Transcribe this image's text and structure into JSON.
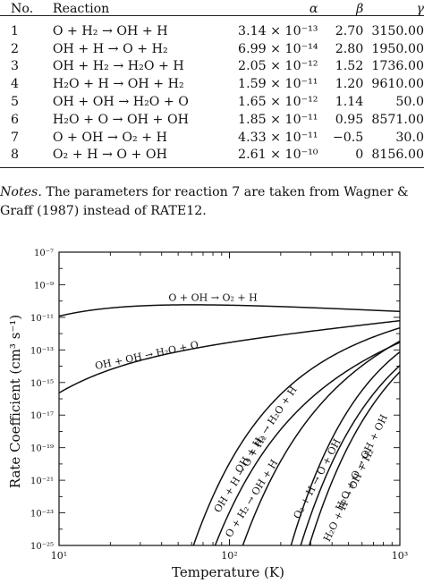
{
  "table": {
    "headers": {
      "no": "No.",
      "reaction": "Reaction",
      "alpha": "α",
      "beta": "β",
      "gamma": "γ"
    },
    "rows": [
      {
        "no": "1",
        "reaction": "O + H₂ → OH + H",
        "alpha": "3.14 × 10⁻¹³",
        "beta": "2.70",
        "gamma": "3150.00"
      },
      {
        "no": "2",
        "reaction": "OH + H → O + H₂",
        "alpha": "6.99 × 10⁻¹⁴",
        "beta": "2.80",
        "gamma": "1950.00"
      },
      {
        "no": "3",
        "reaction": "OH + H₂ → H₂O + H",
        "alpha": "2.05 × 10⁻¹²",
        "beta": "1.52",
        "gamma": "1736.00"
      },
      {
        "no": "4",
        "reaction": "H₂O + H → OH + H₂",
        "alpha": "1.59 × 10⁻¹¹",
        "beta": "1.20",
        "gamma": "9610.00"
      },
      {
        "no": "5",
        "reaction": "OH + OH → H₂O + O",
        "alpha": "1.65 × 10⁻¹²",
        "beta": "1.14",
        "gamma": "50.0"
      },
      {
        "no": "6",
        "reaction": "H₂O + O → OH + OH",
        "alpha": "1.85 × 10⁻¹¹",
        "beta": "0.95",
        "gamma": "8571.00"
      },
      {
        "no": "7",
        "reaction": "O + OH → O₂ + H",
        "alpha": "4.33 × 10⁻¹¹",
        "beta": "−0.5",
        "gamma": "30.0"
      },
      {
        "no": "8",
        "reaction": "O₂ + H → O + OH",
        "alpha": "2.61 × 10⁻¹⁰",
        "beta": "0",
        "gamma": "8156.00"
      }
    ]
  },
  "notes": {
    "label": "Notes.",
    "text": " The parameters for reaction 7 are taken from Wagner & Graff (1987) instead of RATE12."
  },
  "chart_data": {
    "type": "line",
    "title": "",
    "xlabel": "Temperature (K)",
    "ylabel": "Rate Coefficient (cm³ s⁻¹)",
    "xscale": "log",
    "yscale": "log",
    "xlim": [
      10,
      1000
    ],
    "ylim": [
      1e-25,
      1e-07
    ],
    "x_ticks": [
      "10¹",
      "10²",
      "10³"
    ],
    "y_ticks": [
      "10⁻²⁵",
      "10⁻²³",
      "10⁻²¹",
      "10⁻¹⁹",
      "10⁻¹⁷",
      "10⁻¹⁵",
      "10⁻¹³",
      "10⁻¹¹",
      "10⁻⁹",
      "10⁻⁷"
    ],
    "grid": false,
    "curve_label_font_size": 11,
    "series": [
      {
        "name": "O + OH → O₂ + H",
        "alpha": 4.33e-11,
        "beta": -0.5,
        "gamma": 30.0,
        "label_pos": {
          "T": 80,
          "k": 1e-10
        },
        "label_rot": 0
      },
      {
        "name": "OH + OH → H₂O + O",
        "alpha": 1.65e-12,
        "beta": 1.14,
        "gamma": 50.0,
        "label_pos": {
          "T": 33,
          "k": 3e-14
        },
        "label_rot": -12
      },
      {
        "name": "OH + H₂ → H₂O + H",
        "alpha": 2.05e-12,
        "beta": 1.52,
        "gamma": 1736.0,
        "label_pos": {
          "T": 170,
          "k": 1e-18
        },
        "label_rot": -56
      },
      {
        "name": "OH + H → O + H₂",
        "alpha": 6.99e-14,
        "beta": 2.8,
        "gamma": 1950.0,
        "label_pos": {
          "T": 120,
          "k": 2e-21
        },
        "label_rot": -58
      },
      {
        "name": "O + H₂ → OH + H",
        "alpha": 3.14e-13,
        "beta": 2.7,
        "gamma": 3150.0,
        "label_pos": {
          "T": 140,
          "k": 6e-23
        },
        "label_rot": -58
      },
      {
        "name": "O₂ + H → O + OH",
        "alpha": 2.61e-10,
        "beta": 0,
        "gamma": 8156.0,
        "label_pos": {
          "T": 340,
          "k": 1e-21
        },
        "label_rot": -62
      },
      {
        "name": "H₂O + O → OH + OH",
        "alpha": 1.85e-11,
        "beta": 0.95,
        "gamma": 8571.0,
        "label_pos": {
          "T": 620,
          "k": 1e-20
        },
        "label_rot": -64
      },
      {
        "name": "H₂O + H → OH + H₂",
        "alpha": 1.59e-11,
        "beta": 1.2,
        "gamma": 9610.0,
        "label_pos": {
          "T": 520,
          "k": 1e-22
        },
        "label_rot": -64
      }
    ]
  }
}
